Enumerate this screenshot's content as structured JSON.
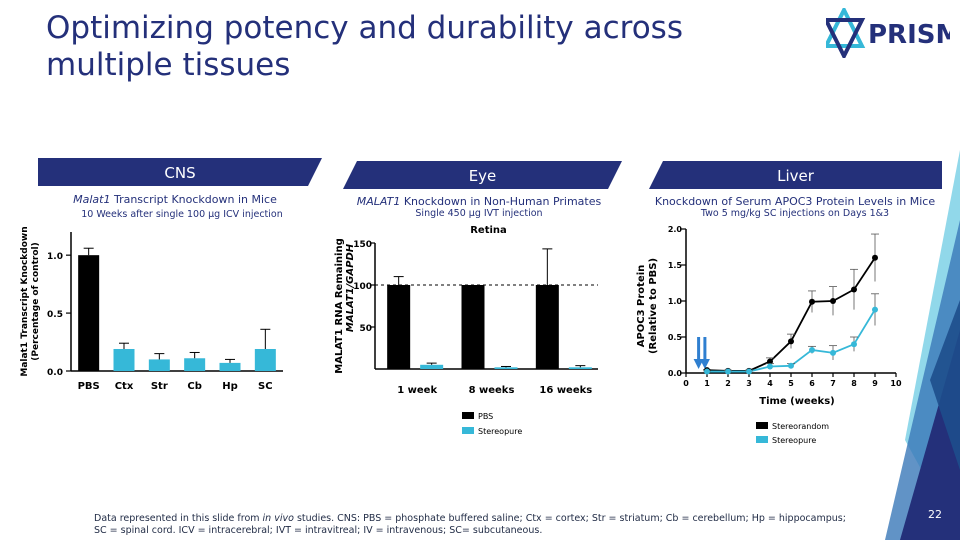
{
  "title": "Optimizing potency and durability across multiple tissues",
  "logo_text": "PRISM",
  "page_number": "22",
  "colors": {
    "navy": "#24307a",
    "black": "#000000",
    "teal": "#36b8d8",
    "dark_teal": "#1e4e8c"
  },
  "panels": {
    "cns": {
      "banner": "CNS",
      "title_italic": "Malat1",
      "title_rest": " Transcript Knockdown in Mice",
      "subtitle": "10 Weeks after single 100 µg ICV injection"
    },
    "eye": {
      "banner": "Eye",
      "title_italic": "MALAT1",
      "title_rest": " Knockdown in Non-Human Primates",
      "subtitle": "Single 450 µg IVT injection"
    },
    "liver": {
      "banner": "Liver",
      "title": "Knockdown of Serum APOC3 Protein Levels in Mice",
      "subtitle": "Two 5 mg/kg SC injections on Days 1&3"
    }
  },
  "footer": {
    "line1_pre": "Data represented in this slide from ",
    "line1_italic": "in vivo",
    "line1_post": " studies.  CNS: PBS = phosphate buffered saline; Ctx = cortex; Str = striatum; Cb = cerebellum; Hp = hippocampus;",
    "line2": "SC = spinal cord.  ICV = intracerebral; IVT = intravitreal; IV = intravenous; SC= subcutaneous."
  },
  "chart_data": [
    {
      "type": "bar",
      "ylabel": "Malat1 Transcript Knockdown (Percentage of control)",
      "ylim": [
        0,
        1.2
      ],
      "yticks": [
        "0.0",
        "0.5",
        "1.0"
      ],
      "categories": [
        "PBS",
        "Ctx",
        "Str",
        "Cb",
        "Hp",
        "SC"
      ],
      "values": [
        1.0,
        0.19,
        0.1,
        0.11,
        0.07,
        0.19
      ],
      "errors": [
        0.06,
        0.05,
        0.05,
        0.05,
        0.03,
        0.17
      ],
      "colors": [
        "black",
        "teal",
        "teal",
        "teal",
        "teal",
        "teal"
      ]
    },
    {
      "type": "bar",
      "title": "Retina",
      "ylabel": "MALAT1 RNA Remaining",
      "ylabel2": "MALAT1/GAPDH",
      "ylim": [
        0,
        150
      ],
      "yticks": [
        "50",
        "100",
        "150"
      ],
      "reference_line": 100,
      "categories": [
        "1 week",
        "8 weeks",
        "16 weeks"
      ],
      "series": [
        {
          "name": "PBS",
          "values": [
            100,
            100,
            100
          ],
          "errors": [
            10,
            0,
            43
          ]
        },
        {
          "name": "Stereopure",
          "values": [
            5,
            2,
            2
          ],
          "errors": [
            2,
            1,
            2
          ]
        }
      ]
    },
    {
      "type": "line",
      "xlabel": "Time (weeks)",
      "ylabel": "APOC3 Protein",
      "ylabel2": "(Relative to PBS)",
      "xlim": [
        0,
        10
      ],
      "ylim": [
        0,
        2.0
      ],
      "xticks": [
        "0",
        "1",
        "2",
        "3",
        "4",
        "5",
        "6",
        "7",
        "8",
        "9",
        "10"
      ],
      "yticks": [
        "0.0",
        "0.5",
        "1.0",
        "1.5",
        "2.0"
      ],
      "dosing_arrows_x": [
        0.6,
        0.9
      ],
      "series": [
        {
          "name": "Stereorandom",
          "x": [
            1,
            2,
            3,
            4,
            5,
            6,
            7,
            8,
            9
          ],
          "y": [
            0.04,
            0.03,
            0.03,
            0.16,
            0.44,
            0.99,
            1.0,
            1.16,
            1.6
          ],
          "errors": [
            0.01,
            0.01,
            0.01,
            0.05,
            0.1,
            0.15,
            0.2,
            0.28,
            0.33
          ]
        },
        {
          "name": "Stereopure",
          "x": [
            1,
            2,
            3,
            4,
            5,
            6,
            7,
            8,
            9
          ],
          "y": [
            0.02,
            0.02,
            0.02,
            0.09,
            0.1,
            0.32,
            0.28,
            0.4,
            0.88
          ],
          "errors": [
            0.01,
            0.01,
            0.01,
            0.04,
            0.03,
            0.05,
            0.1,
            0.1,
            0.22
          ]
        }
      ]
    }
  ]
}
